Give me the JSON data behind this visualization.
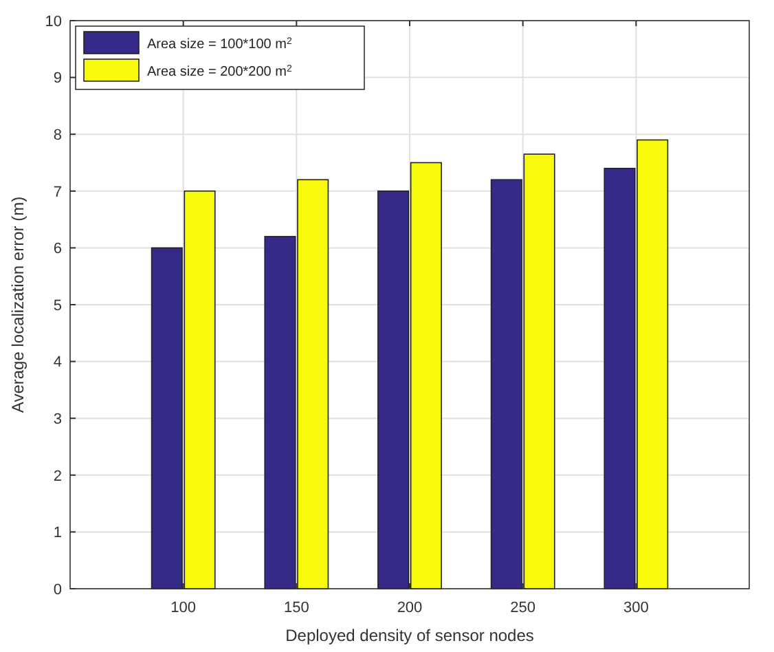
{
  "chart_data": {
    "type": "bar",
    "xlabel": "Deployed density of sensor nodes",
    "ylabel": "Average localization error (m)",
    "categories": [
      "100",
      "150",
      "200",
      "250",
      "300"
    ],
    "series": [
      {
        "name": "Area size = 100*100 m$^{2}$",
        "color": "#352a87",
        "values": [
          6.0,
          6.2,
          7.0,
          7.2,
          7.4
        ]
      },
      {
        "name": "Area size = 200*200 m$^{2}$",
        "color": "#f8fa0d",
        "values": [
          7.0,
          7.2,
          7.5,
          7.65,
          7.9
        ]
      }
    ],
    "ylim": [
      0,
      10
    ],
    "yticks": [
      0,
      1,
      2,
      3,
      4,
      5,
      6,
      7,
      8,
      9,
      10
    ],
    "grid": true,
    "legend": "top left"
  }
}
